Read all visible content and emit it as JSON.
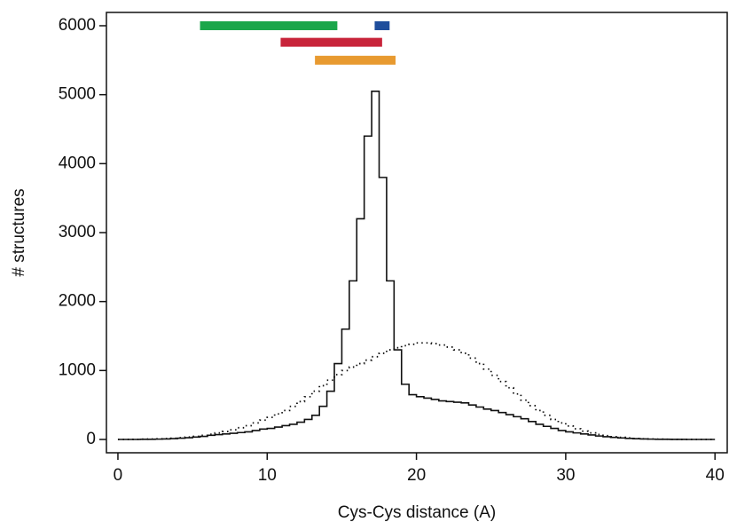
{
  "chart_data": {
    "type": "histogram",
    "x_label": "Cys-Cys distance (A)",
    "y_label": "# structures",
    "xlim": [
      -0.77,
      40.82
    ],
    "ylim": [
      -193,
      6193
    ],
    "xticks": [
      0,
      10,
      20,
      30,
      40
    ],
    "yticks": [
      0,
      1000,
      2000,
      3000,
      4000,
      5000,
      6000
    ],
    "bins": [
      0,
      0.5,
      1,
      1.5,
      2,
      2.5,
      3,
      3.5,
      4,
      4.5,
      5,
      5.5,
      6,
      6.5,
      7,
      7.5,
      8,
      8.5,
      9,
      9.5,
      10,
      10.5,
      11,
      11.5,
      12,
      12.5,
      13,
      13.5,
      14,
      14.5,
      15,
      15.5,
      16,
      16.5,
      17,
      17.5,
      18,
      18.5,
      19,
      19.5,
      20,
      20.5,
      21,
      21.5,
      22,
      22.5,
      23,
      23.5,
      24,
      24.5,
      25,
      25.5,
      26,
      26.5,
      27,
      27.5,
      28,
      28.5,
      29,
      29.5,
      30,
      30.5,
      31,
      31.5,
      32,
      32.5,
      33,
      33.5,
      34,
      34.5,
      35,
      35.5,
      36,
      36.5,
      37,
      37.5,
      38,
      38.5,
      39,
      39.5,
      40
    ],
    "series": [
      {
        "color": "#111111",
        "line_style": "solid",
        "values": [
          0,
          0,
          0,
          2,
          3,
          5,
          8,
          12,
          18,
          25,
          35,
          45,
          60,
          70,
          80,
          90,
          100,
          110,
          130,
          150,
          160,
          180,
          200,
          220,
          250,
          290,
          350,
          480,
          700,
          1100,
          1600,
          2300,
          3200,
          4400,
          5050,
          3800,
          2300,
          1300,
          800,
          650,
          620,
          600,
          580,
          560,
          550,
          540,
          530,
          500,
          470,
          440,
          420,
          390,
          360,
          330,
          300,
          260,
          220,
          190,
          160,
          130,
          110,
          95,
          80,
          65,
          50,
          40,
          30,
          22,
          15,
          10,
          7,
          5,
          3,
          2,
          1,
          1,
          0,
          0,
          0,
          0
        ]
      },
      {
        "color": "#111111",
        "line_style": "dotted",
        "values": [
          0,
          1,
          2,
          4,
          6,
          9,
          13,
          18,
          25,
          35,
          45,
          60,
          75,
          95,
          115,
          140,
          170,
          200,
          240,
          280,
          320,
          370,
          420,
          480,
          550,
          620,
          700,
          780,
          860,
          940,
          1000,
          1050,
          1100,
          1150,
          1200,
          1250,
          1300,
          1330,
          1360,
          1380,
          1400,
          1400,
          1390,
          1370,
          1340,
          1300,
          1250,
          1180,
          1100,
          1020,
          930,
          840,
          750,
          660,
          570,
          490,
          420,
          350,
          290,
          240,
          195,
          155,
          120,
          95,
          72,
          55,
          40,
          30,
          22,
          15,
          10,
          7,
          5,
          3,
          2,
          1,
          1,
          0,
          0,
          0
        ]
      }
    ],
    "ranges": [
      {
        "color": "#1aa64a",
        "x": [
          5.5,
          14.7
        ],
        "y": 6000
      },
      {
        "color": "#1f4e9c",
        "x": [
          17.2,
          18.2
        ],
        "y": 6000
      },
      {
        "color": "#c8243a",
        "x": [
          10.9,
          17.7
        ],
        "y": 5760
      },
      {
        "color": "#e89a30",
        "x": [
          13.2,
          18.6
        ],
        "y": 5500
      }
    ]
  }
}
